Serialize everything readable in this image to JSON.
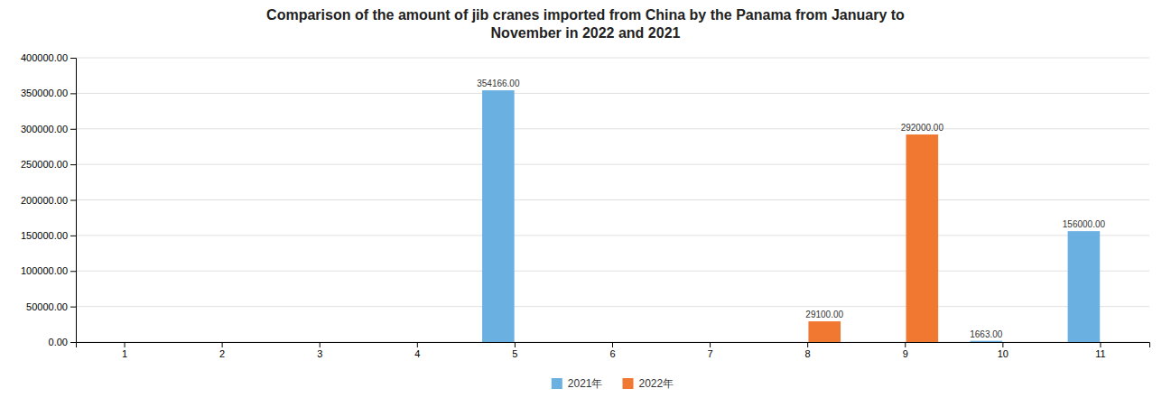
{
  "chart_data": {
    "type": "bar",
    "title": "Comparison of the amount of jib cranes imported from China by the Panama from January to\nNovember in 2022 and 2021",
    "categories": [
      "1",
      "2",
      "3",
      "4",
      "5",
      "6",
      "7",
      "8",
      "9",
      "10",
      "11"
    ],
    "series": [
      {
        "name": "2021年",
        "color": "#6ab0e0",
        "values": [
          0,
          0,
          0,
          0,
          354166.0,
          0,
          0,
          0,
          0,
          1663.0,
          156000.0
        ],
        "value_labels": [
          null,
          null,
          null,
          null,
          "354166.00",
          null,
          null,
          null,
          null,
          "1663.00",
          "156000.00"
        ]
      },
      {
        "name": "2022年",
        "color": "#f07830",
        "values": [
          0,
          0,
          0,
          0,
          0,
          0,
          0,
          29100.0,
          292000.0,
          0,
          0
        ],
        "value_labels": [
          null,
          null,
          null,
          null,
          null,
          null,
          null,
          "29100.00",
          "292000.00",
          null,
          null
        ]
      }
    ],
    "ylim": [
      0,
      400000
    ],
    "yticks": [
      {
        "value": 0,
        "label": "0.00"
      },
      {
        "value": 50000,
        "label": "50000.00"
      },
      {
        "value": 100000,
        "label": "100000.00"
      },
      {
        "value": 150000,
        "label": "150000.00"
      },
      {
        "value": 200000,
        "label": "200000.00"
      },
      {
        "value": 250000,
        "label": "250000.00"
      },
      {
        "value": 300000,
        "label": "300000.00"
      },
      {
        "value": 350000,
        "label": "350000.00"
      },
      {
        "value": 400000,
        "label": "400000.00"
      }
    ],
    "grid": true,
    "legend": "bottom",
    "data_labels": true
  }
}
